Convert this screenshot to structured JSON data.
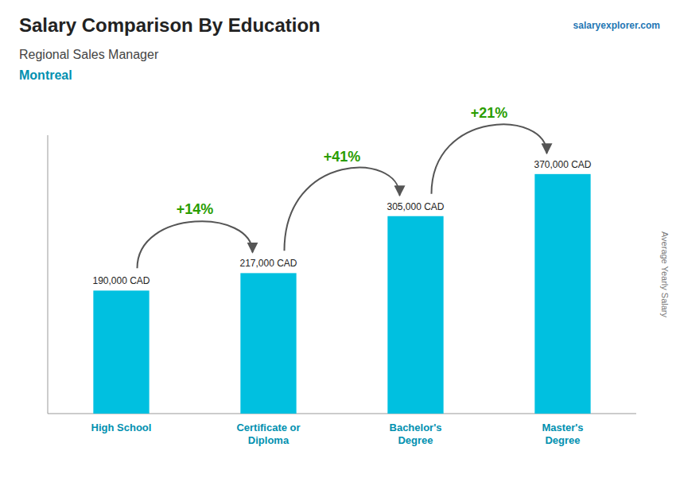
{
  "chart_data": {
    "type": "bar",
    "title": "Salary Comparison By Education",
    "subtitle": [
      "Regional Sales Manager",
      "Montreal"
    ],
    "source": "salaryexplorer.com",
    "ylabel": "Average Yearly Salary",
    "categories": [
      "High School",
      "Certificate or\nDiploma",
      "Bachelor's\nDegree",
      "Master's\nDegree"
    ],
    "values": [
      190000,
      217000,
      305000,
      370000
    ],
    "value_labels": [
      "190,000 CAD",
      "217,000 CAD",
      "305,000 CAD",
      "370,000 CAD"
    ],
    "annotations": [
      "+14%",
      "+41%",
      "+21%"
    ],
    "color": "#00c0e0",
    "ylim": [
      0,
      430000
    ],
    "yticks": [],
    "grid": false,
    "data_labels": true,
    "tick_labels": "x"
  }
}
